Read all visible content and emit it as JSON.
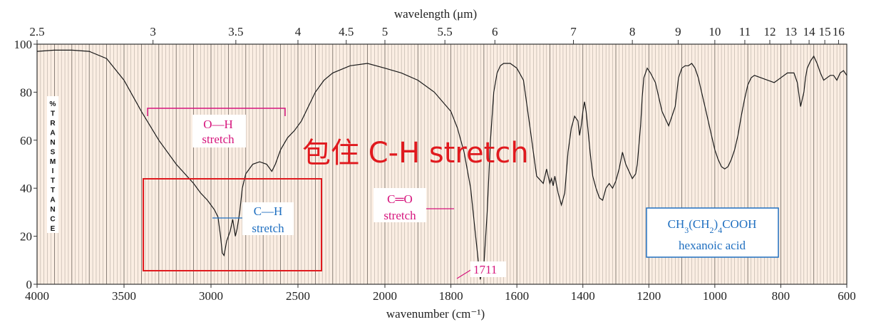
{
  "chart_data": {
    "type": "line",
    "top_axis_title": "wavelength (μm)",
    "bottom_axis_title": "wavenumber (cm⁻¹)",
    "ylabel": "% TRANSMITTANCE",
    "ylim": [
      0,
      100
    ],
    "x_range_wavenumber": [
      4000,
      600
    ],
    "top_ticks": [
      "2.5",
      "3",
      "3.5",
      "4",
      "4.5",
      "5",
      "5.5",
      "6",
      "7",
      "8",
      "9",
      "10",
      "11",
      "12",
      "13",
      "14",
      "15",
      "16"
    ],
    "top_tick_values_um": [
      2.5,
      3,
      3.5,
      4,
      4.5,
      5,
      5.5,
      6,
      7,
      8,
      9,
      10,
      11,
      12,
      13,
      14,
      15,
      16
    ],
    "bottom_ticks": [
      "4000",
      "3500",
      "3000",
      "2500",
      "2000",
      "1800",
      "1600",
      "1400",
      "1200",
      "1000",
      "800",
      "600"
    ],
    "bottom_tick_values": [
      4000,
      3500,
      3000,
      2500,
      2000,
      1800,
      1600,
      1400,
      1200,
      1000,
      800,
      600
    ],
    "y_ticks": [
      "0",
      "20",
      "40",
      "60",
      "80",
      "100"
    ],
    "y_tick_values": [
      0,
      20,
      40,
      60,
      80,
      100
    ],
    "series": [
      {
        "x": [
          4000,
          3900,
          3800,
          3700,
          3600,
          3500,
          3400,
          3300,
          3200,
          3100,
          3060,
          3020,
          2980,
          2960,
          2945,
          2935,
          2925,
          2910,
          2890,
          2875,
          2860,
          2850,
          2835,
          2820,
          2800,
          2760,
          2720,
          2680,
          2650,
          2630,
          2600,
          2560,
          2520,
          2480,
          2440,
          2400,
          2350,
          2300,
          2200,
          2100,
          2000,
          1950,
          1900,
          1850,
          1800,
          1780,
          1760,
          1740,
          1725,
          1711,
          1700,
          1690,
          1680,
          1670,
          1660,
          1650,
          1640,
          1620,
          1600,
          1580,
          1560,
          1540,
          1520,
          1510,
          1500,
          1495,
          1490,
          1485,
          1475,
          1465,
          1455,
          1445,
          1435,
          1425,
          1415,
          1410,
          1405,
          1400,
          1395,
          1390,
          1385,
          1378,
          1370,
          1360,
          1350,
          1340,
          1330,
          1320,
          1310,
          1300,
          1290,
          1280,
          1270,
          1260,
          1250,
          1240,
          1235,
          1230,
          1225,
          1220,
          1215,
          1205,
          1195,
          1180,
          1160,
          1140,
          1120,
          1110,
          1100,
          1090,
          1080,
          1070,
          1060,
          1050,
          1040,
          1030,
          1020,
          1010,
          1000,
          990,
          980,
          970,
          960,
          950,
          940,
          930,
          920,
          910,
          900,
          890,
          880,
          860,
          840,
          820,
          800,
          780,
          760,
          750,
          740,
          730,
          725,
          720,
          710,
          700,
          690,
          680,
          670,
          660,
          650,
          640,
          630,
          620,
          610,
          600
        ],
        "values": [
          97,
          97.5,
          97.5,
          97,
          94,
          85,
          72,
          60,
          50,
          42,
          38,
          35,
          31,
          28,
          20,
          13,
          12,
          18,
          22,
          27,
          20,
          23,
          30,
          40,
          46,
          50,
          51,
          50,
          47,
          50,
          56,
          61,
          64,
          68,
          74,
          80,
          85,
          88,
          91,
          92,
          90,
          88,
          85,
          80,
          72,
          65,
          55,
          40,
          20,
          2,
          8,
          30,
          60,
          80,
          88,
          91,
          92,
          92,
          90,
          85,
          65,
          45,
          42,
          48,
          42,
          44,
          41,
          45,
          38,
          33,
          38,
          55,
          65,
          70,
          68,
          62,
          66,
          72,
          76,
          72,
          65,
          55,
          45,
          40,
          36,
          35,
          40,
          42,
          40,
          43,
          48,
          55,
          50,
          47,
          44,
          46,
          50,
          58,
          66,
          78,
          86,
          90,
          88,
          84,
          72,
          66,
          74,
          86,
          90,
          91,
          91,
          92,
          90,
          86,
          80,
          74,
          68,
          62,
          56,
          52,
          49,
          48,
          49,
          52,
          56,
          62,
          70,
          77,
          83,
          86,
          87,
          86,
          85,
          84,
          86,
          88,
          88,
          84,
          74,
          80,
          86,
          90,
          93,
          95,
          92,
          88,
          85,
          86,
          87,
          87,
          85,
          88,
          89,
          87
        ],
        "x_unit": "cm⁻¹",
        "y_unit": "% transmittance"
      }
    ],
    "annotations": [
      {
        "text_top": "O—H",
        "text_bottom": "stretch"
      },
      {
        "text_top": "C—H",
        "text_bottom": "stretch"
      },
      {
        "text_top": "C═O",
        "text_bottom": "stretch"
      },
      {
        "text": "1711"
      }
    ],
    "handwritten_note": "包住 C-H stretch",
    "compound": {
      "formula": "CH3(CH2)4COOH",
      "name": "hexanoic acid"
    },
    "colors": {
      "plot_bg": "#fbeee3",
      "grid": "#8a8178",
      "curve": "#1a1a1a",
      "magenta": "#d6157d",
      "blue": "#1f6fc0",
      "red": "#e0191e"
    }
  }
}
